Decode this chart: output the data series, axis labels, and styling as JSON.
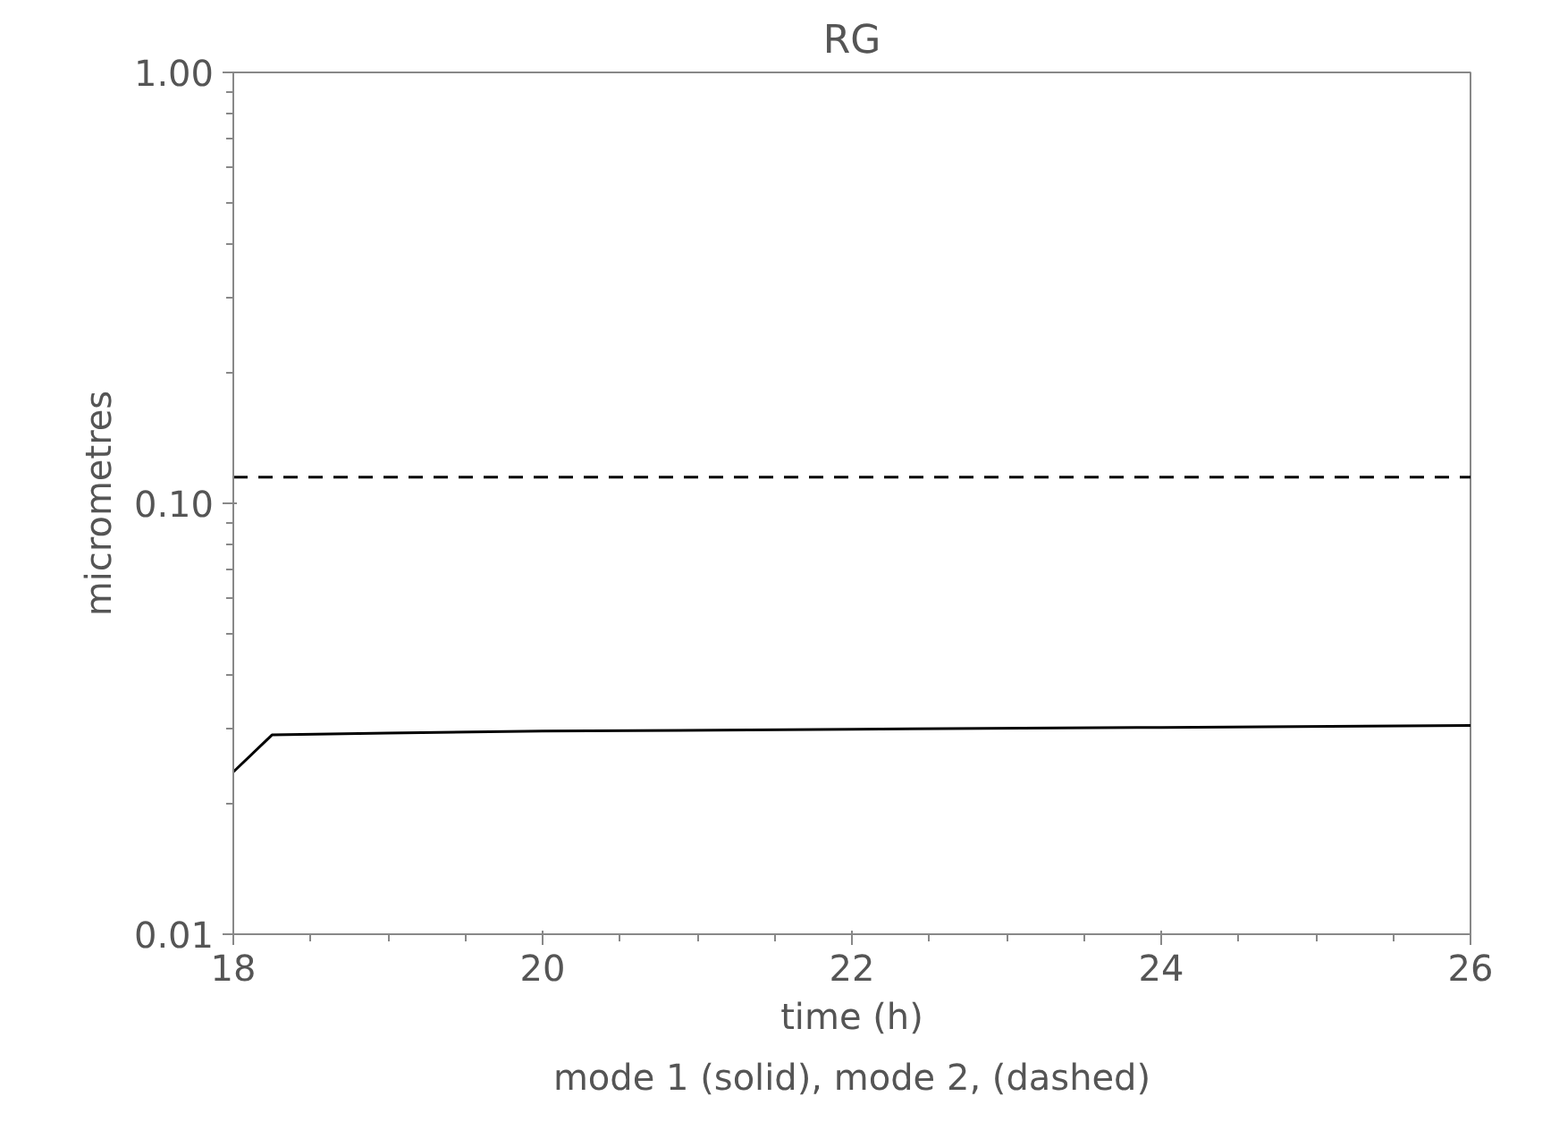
{
  "chart_data": {
    "type": "line",
    "title": "RG",
    "xlabel": "time (h)",
    "ylabel": "micrometres",
    "log": "y",
    "grid": false,
    "xlim": [
      18,
      26
    ],
    "ylim": [
      0.01,
      1
    ],
    "xticks": [
      18,
      {
        "value": 18.5,
        "label": null
      },
      {
        "value": 19,
        "label": null
      },
      {
        "value": 19.5,
        "label": null
      },
      20,
      {
        "value": 20.5,
        "label": null
      },
      {
        "value": 21,
        "label": null
      },
      {
        "value": 21.5,
        "label": null
      },
      22,
      {
        "value": 22.5,
        "label": null
      },
      {
        "value": 23,
        "label": null
      },
      {
        "value": 23.5,
        "label": null
      },
      24,
      {
        "value": 24.5,
        "label": null
      },
      {
        "value": 25,
        "label": null
      },
      {
        "value": 25.5,
        "label": null
      },
      26
    ],
    "yticks": [
      {
        "value": 0.01,
        "label": "0.01"
      },
      {
        "value": 0.02,
        "label": null
      },
      {
        "value": 0.03,
        "label": null
      },
      {
        "value": 0.04,
        "label": null
      },
      {
        "value": 0.05,
        "label": null
      },
      {
        "value": 0.06,
        "label": null
      },
      {
        "value": 0.07,
        "label": null
      },
      {
        "value": 0.08,
        "label": null
      },
      {
        "value": 0.09,
        "label": null
      },
      {
        "value": 0.1,
        "label": "0.10"
      },
      {
        "value": 0.2,
        "label": null
      },
      {
        "value": 0.3,
        "label": null
      },
      {
        "value": 0.4,
        "label": null
      },
      {
        "value": 0.5,
        "label": null
      },
      {
        "value": 0.6,
        "label": null
      },
      {
        "value": 0.7,
        "label": null
      },
      {
        "value": 0.8,
        "label": null
      },
      {
        "value": 0.9,
        "label": null
      },
      {
        "value": 1,
        "label": "1.00"
      }
    ],
    "series": [
      {
        "color": "#000000",
        "line_style": "solid",
        "x": [
          18,
          18.25,
          19,
          20,
          22,
          24,
          26
        ],
        "values": [
          0.0238,
          0.029,
          0.0293,
          0.0296,
          0.0299,
          0.0302,
          0.0305
        ]
      },
      {
        "color": "#000000",
        "line_style": "dashed",
        "x": [
          18,
          26
        ],
        "values": [
          0.115,
          0.115
        ]
      }
    ],
    "annotations": [
      "mode 1 (solid), mode 2, (dashed)"
    ]
  }
}
